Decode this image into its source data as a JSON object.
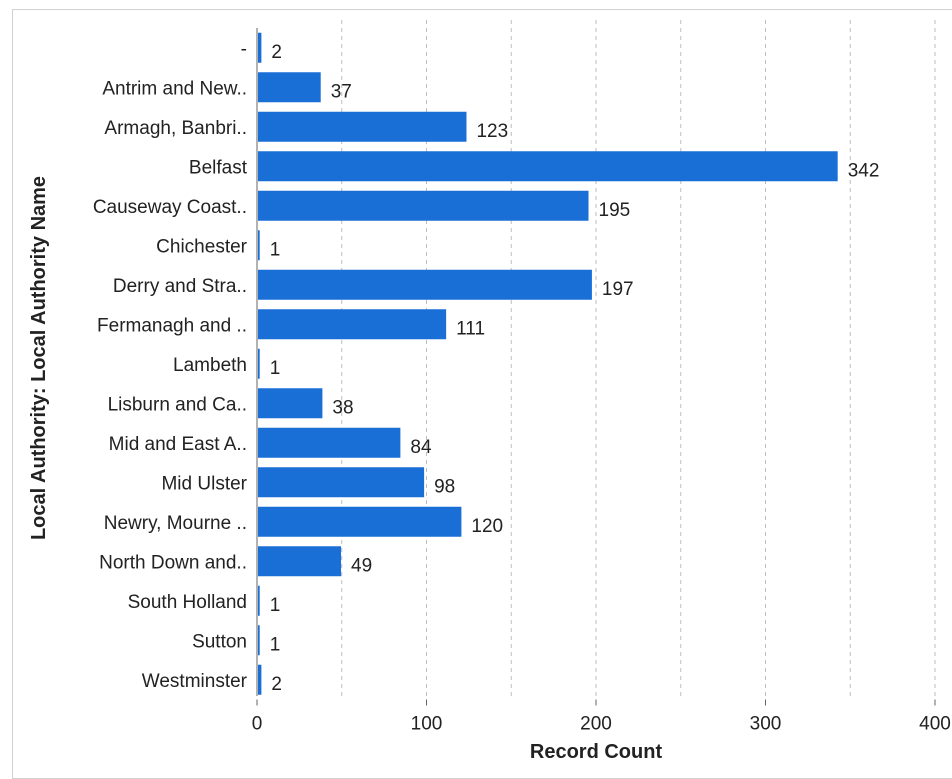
{
  "chart_data": {
    "type": "bar",
    "orientation": "horizontal",
    "ylabel": "Local Authority: Local Authority Name",
    "xlabel": "Record Count",
    "categories": [
      "-",
      "Antrim and New..",
      "Armagh, Banbri..",
      "Belfast",
      "Causeway Coast..",
      "Chichester",
      "Derry and Stra..",
      "Fermanagh and ..",
      "Lambeth",
      "Lisburn and Ca..",
      "Mid and East A..",
      "Mid Ulster",
      "Newry, Mourne ..",
      "North Down and..",
      "South Holland",
      "Sutton",
      "Westminster"
    ],
    "values": [
      2,
      37,
      123,
      342,
      195,
      1,
      197,
      111,
      1,
      38,
      84,
      98,
      120,
      49,
      1,
      1,
      2
    ],
    "xlim": [
      0,
      400
    ],
    "xticks": [
      "0",
      "100",
      "200",
      "300",
      "400"
    ],
    "grid": "vertical dashed",
    "bar_color": "#1a6fd6"
  }
}
